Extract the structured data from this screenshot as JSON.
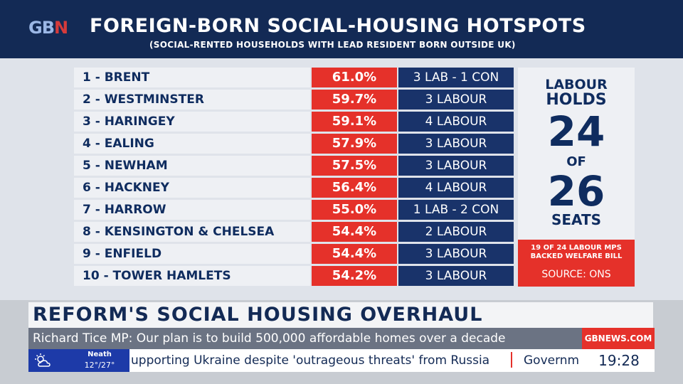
{
  "brand": {
    "logo_text_1": "GB",
    "logo_text_2": "N"
  },
  "header": {
    "title": "FOREIGN-BORN SOCIAL-HOUSING HOTSPOTS",
    "subtitle": "(SOCIAL-RENTED HOUSEHOLDS WITH LEAD RESIDENT BORN OUTSIDE UK)"
  },
  "table": {
    "rows": [
      {
        "name": "1 - BRENT",
        "pct": "61.0%",
        "seats": "3 LAB - 1 CON"
      },
      {
        "name": "2 - WESTMINSTER",
        "pct": "59.7%",
        "seats": "3 LABOUR"
      },
      {
        "name": "3 - HARINGEY",
        "pct": "59.1%",
        "seats": "4 LABOUR"
      },
      {
        "name": "4 - EALING",
        "pct": "57.9%",
        "seats": "3 LABOUR"
      },
      {
        "name": "5 - NEWHAM",
        "pct": "57.5%",
        "seats": "3 LABOUR"
      },
      {
        "name": "6 - HACKNEY",
        "pct": "56.4%",
        "seats": "4 LABOUR"
      },
      {
        "name": "7 - HARROW",
        "pct": "55.0%",
        "seats": "1 LAB - 2 CON"
      },
      {
        "name": "8 - KENSINGTON & CHELSEA",
        "pct": "54.4%",
        "seats": "2 LABOUR"
      },
      {
        "name": "9 - ENFIELD",
        "pct": "54.4%",
        "seats": "3 LABOUR"
      },
      {
        "name": "10 - TOWER HAMLETS",
        "pct": "54.2%",
        "seats": "3 LABOUR"
      }
    ]
  },
  "sidebar": {
    "line1": "LABOUR",
    "line2": "HOLDS",
    "big1": "24",
    "line3": "OF",
    "big2": "26",
    "line4": "SEATS",
    "note1": "19 OF 24 LABOUR MPS",
    "note2": "BACKED WELFARE BILL",
    "source": "SOURCE: ONS"
  },
  "lower_third": {
    "headline": "REFORM'S SOCIAL HOUSING OVERHAUL",
    "strap": "Richard Tice MP: Our plan is to build 500,000 affordable homes over a decade",
    "website": "GBNEWS.COM"
  },
  "ticker": {
    "weather_location": "Neath",
    "weather_temp": "12°/27°",
    "weather_icon": "sun-cloud-icon",
    "text": "upporting Ukraine despite 'outrageous threats' from Russia",
    "text2": "Governm",
    "clock": "19:28"
  },
  "colors": {
    "navy": "#132a55",
    "red": "#e5312a",
    "seat_blue": "#19336a",
    "panel": "#dfe3ea"
  }
}
